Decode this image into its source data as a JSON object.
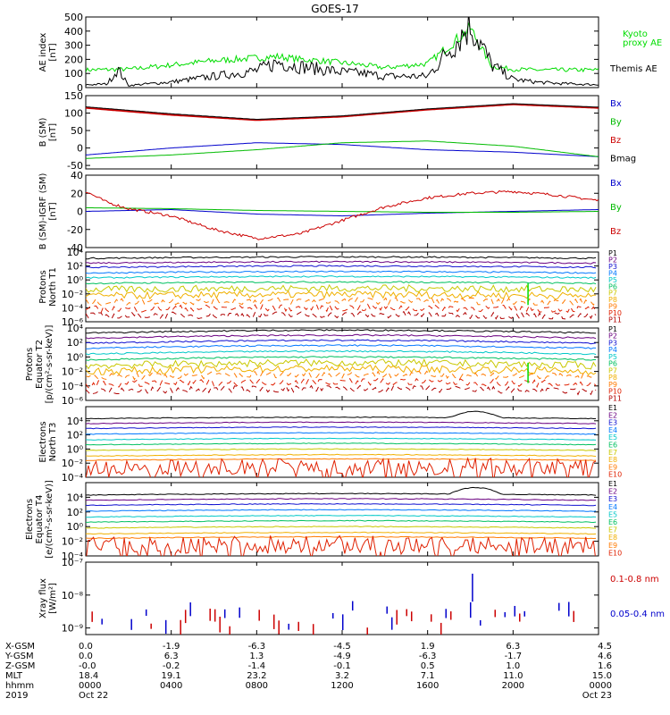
{
  "title": "GOES-17",
  "panels": [
    {
      "id": "ae",
      "ylabel": [
        "AE index",
        "[nT]"
      ],
      "ticks": [
        "500",
        "400",
        "300",
        "200",
        "100",
        "0"
      ],
      "tickvals": [
        500,
        400,
        300,
        200,
        100,
        0
      ],
      "ylim": [
        0,
        500
      ],
      "scale": "linear",
      "legend": [
        {
          "text": "Kyoto",
          "color": "#00dd00"
        },
        {
          "text": "proxy AE",
          "color": "#00dd00"
        },
        {
          "text": "Themis AE",
          "color": "#000000"
        }
      ]
    },
    {
      "id": "bsm",
      "ylabel": [
        "B (SM)",
        "[nT]"
      ],
      "ticks": [
        "150",
        "100",
        "50",
        "0",
        "-50"
      ],
      "tickvals": [
        150,
        100,
        50,
        0,
        -50
      ],
      "ylim": [
        -60,
        150
      ],
      "scale": "linear",
      "legend": [
        {
          "text": "Bx",
          "color": "#0000cc"
        },
        {
          "text": "By",
          "color": "#00bb00"
        },
        {
          "text": "Bz",
          "color": "#cc0000"
        },
        {
          "text": "Bmag",
          "color": "#000000"
        }
      ]
    },
    {
      "id": "bigrf",
      "ylabel": [
        "B (SM)-IGRF (SM)",
        "[nT]"
      ],
      "ticks": [
        "40",
        "20",
        "0",
        "-20",
        "-40"
      ],
      "tickvals": [
        40,
        20,
        0,
        -20,
        -40
      ],
      "ylim": [
        -40,
        40
      ],
      "scale": "linear",
      "legend": [
        {
          "text": "Bx",
          "color": "#0000cc"
        },
        {
          "text": "By",
          "color": "#00bb00"
        },
        {
          "text": "Bz",
          "color": "#cc0000"
        }
      ]
    },
    {
      "id": "pn",
      "ylabel": [
        "Protons",
        "North T1"
      ],
      "ticks": [
        "10⁴",
        "10²",
        "10⁰",
        "10⁻²",
        "10⁻⁴",
        "10⁻⁶"
      ],
      "tickvals": [
        4,
        2,
        0,
        -2,
        -4,
        -6
      ],
      "ylim": [
        -6,
        4
      ],
      "scale": "log",
      "legend": [
        "P1",
        "P2",
        "P3",
        "P4",
        "P5",
        "P6",
        "P7",
        "P8",
        "P9",
        "P10",
        "P11"
      ]
    },
    {
      "id": "pe",
      "ylabel": [
        "Protons",
        "Equator T2",
        "[p/(cm²-s-sr-keV)]"
      ],
      "ticks": [
        "10⁴",
        "10²",
        "10⁰",
        "10⁻²",
        "10⁻⁴",
        "10⁻⁶"
      ],
      "tickvals": [
        4,
        2,
        0,
        -2,
        -4,
        -6
      ],
      "ylim": [
        -6,
        4
      ],
      "scale": "log",
      "legend": [
        "P1",
        "P2",
        "P3",
        "P4",
        "P5",
        "P6",
        "P7",
        "P8",
        "P9",
        "P10",
        "P11"
      ]
    },
    {
      "id": "en",
      "ylabel": [
        "Electrons",
        "North T3"
      ],
      "ticks": [
        "10⁴",
        "10²",
        "10⁰",
        "10⁻²",
        "10⁻⁴"
      ],
      "tickvals": [
        4,
        2,
        0,
        -2,
        -4
      ],
      "ylim": [
        -4,
        6
      ],
      "scale": "log",
      "legend": [
        "E1",
        "E2",
        "E3",
        "E4",
        "E5",
        "E6",
        "E7",
        "E8",
        "E9",
        "E10"
      ]
    },
    {
      "id": "ee",
      "ylabel": [
        "Electrons",
        "Equator T4",
        "[e/(cm²-s-sr-keV)]"
      ],
      "ticks": [
        "10⁴",
        "10²",
        "10⁰",
        "10⁻²",
        "10⁻⁴"
      ],
      "tickvals": [
        4,
        2,
        0,
        -2,
        -4
      ],
      "ylim": [
        -4,
        6
      ],
      "scale": "log",
      "legend": [
        "E1",
        "E2",
        "E3",
        "E4",
        "E5",
        "E6",
        "E7",
        "E8",
        "E9",
        "E10"
      ]
    },
    {
      "id": "xray",
      "ylabel": [
        "Xray flux",
        "[W/m²]"
      ],
      "ticks": [
        "10⁻⁷",
        "10⁻⁸",
        "10⁻⁹"
      ],
      "tickvals": [
        -7,
        -8,
        -9
      ],
      "ylim": [
        -9.2,
        -7
      ],
      "scale": "log",
      "legend": [
        {
          "text": "0.1-0.8 nm",
          "color": "#cc0000"
        },
        {
          "text": "0.05-0.4 nm",
          "color": "#0000cc"
        }
      ]
    }
  ],
  "channel_colors": [
    "#000000",
    "#6a0080",
    "#1010d0",
    "#0077ff",
    "#00c8c8",
    "#00c060",
    "#c8c800",
    "#f0b000",
    "#ff7a00",
    "#e02000",
    "#b00000"
  ],
  "ephemeris": {
    "labels": [
      "X-GSM",
      "Y-GSM",
      "Z-GSM",
      "MLT",
      "hhmm",
      "2019"
    ],
    "columns": [
      {
        "x": "0.0",
        "y": "0.0",
        "z": "-0.0",
        "mlt": "18.4",
        "hhmm": "0000",
        "date": "Oct 22"
      },
      {
        "x": "-1.9",
        "y": "6.3",
        "z": "-0.2",
        "mlt": "19.1",
        "hhmm": "0400",
        "date": ""
      },
      {
        "x": "-6.3",
        "y": "1.3",
        "z": "-1.4",
        "mlt": "23.2",
        "hhmm": "0800",
        "date": ""
      },
      {
        "x": "-4.5",
        "y": "-4.9",
        "z": "-0.1",
        "mlt": "3.2",
        "hhmm": "1200",
        "date": ""
      },
      {
        "x": "1.9",
        "y": "-6.3",
        "z": "0.5",
        "mlt": "7.1",
        "hhmm": "1600",
        "date": ""
      },
      {
        "x": "6.3",
        "y": "-1.7",
        "z": "1.0",
        "mlt": "11.0",
        "hhmm": "2000",
        "date": ""
      },
      {
        "x": "4.5",
        "y": "4.6",
        "z": "1.6",
        "mlt": "15.0",
        "hhmm": "0000",
        "date": "Oct 23"
      }
    ]
  },
  "chart_data": {
    "type": "line",
    "title": "GOES-17",
    "x_hours": [
      0,
      4,
      8,
      12,
      16,
      20,
      24
    ],
    "series": [
      {
        "panel": "ae",
        "name": "Kyoto proxy AE",
        "x": [
          0,
          2,
          4,
          6,
          8,
          9,
          10,
          11,
          12,
          13,
          14,
          16,
          18,
          19,
          20,
          21,
          22,
          24
        ],
        "y": [
          125,
          130,
          160,
          190,
          210,
          220,
          200,
          190,
          175,
          160,
          140,
          170,
          420,
          150,
          130,
          125,
          125,
          125
        ]
      },
      {
        "panel": "ae",
        "name": "Themis AE",
        "x": [
          0,
          1,
          1.5,
          2,
          4,
          6,
          8,
          9,
          10,
          11,
          12,
          13,
          14,
          16,
          18,
          19,
          20,
          21,
          22,
          24
        ],
        "y": [
          20,
          25,
          130,
          15,
          40,
          80,
          120,
          180,
          150,
          130,
          110,
          100,
          80,
          80,
          450,
          160,
          60,
          40,
          30,
          20
        ]
      },
      {
        "panel": "bsm",
        "name": "Bx",
        "x": [
          0,
          4,
          8,
          12,
          16,
          20,
          24
        ],
        "y": [
          -20,
          0,
          15,
          10,
          -5,
          -12,
          -25
        ]
      },
      {
        "panel": "bsm",
        "name": "By",
        "x": [
          0,
          4,
          8,
          12,
          16,
          20,
          24
        ],
        "y": [
          -30,
          -20,
          -5,
          15,
          20,
          5,
          -25
        ]
      },
      {
        "panel": "bsm",
        "name": "Bz",
        "x": [
          0,
          4,
          8,
          12,
          16,
          20,
          24
        ],
        "y": [
          115,
          95,
          80,
          90,
          110,
          125,
          115
        ]
      },
      {
        "panel": "bsm",
        "name": "Bmag",
        "x": [
          0,
          4,
          8,
          12,
          16,
          20,
          24
        ],
        "y": [
          118,
          98,
          82,
          92,
          112,
          127,
          117
        ]
      },
      {
        "panel": "bigrf",
        "name": "Bx",
        "x": [
          0,
          4,
          8,
          12,
          16,
          20,
          24
        ],
        "y": [
          0,
          2,
          -3,
          -5,
          -2,
          0,
          2
        ]
      },
      {
        "panel": "bigrf",
        "name": "By",
        "x": [
          0,
          4,
          8,
          12,
          16,
          20,
          24
        ],
        "y": [
          4,
          3,
          1,
          0,
          -1,
          -1,
          0
        ]
      },
      {
        "panel": "bigrf",
        "name": "Bz",
        "x": [
          0,
          1,
          2,
          4,
          6,
          8,
          10,
          12,
          14,
          16,
          18,
          20,
          22,
          24
        ],
        "y": [
          22,
          10,
          3,
          -5,
          -20,
          -30,
          -25,
          -10,
          5,
          15,
          20,
          22,
          18,
          12
        ]
      },
      {
        "panel": "xray",
        "name": "0.1-0.8 nm",
        "y_range": [
          -9.2,
          -8.2
        ]
      },
      {
        "panel": "xray",
        "name": "0.05-0.4 nm",
        "y_range": [
          -9.2,
          -7.5
        ]
      }
    ]
  }
}
